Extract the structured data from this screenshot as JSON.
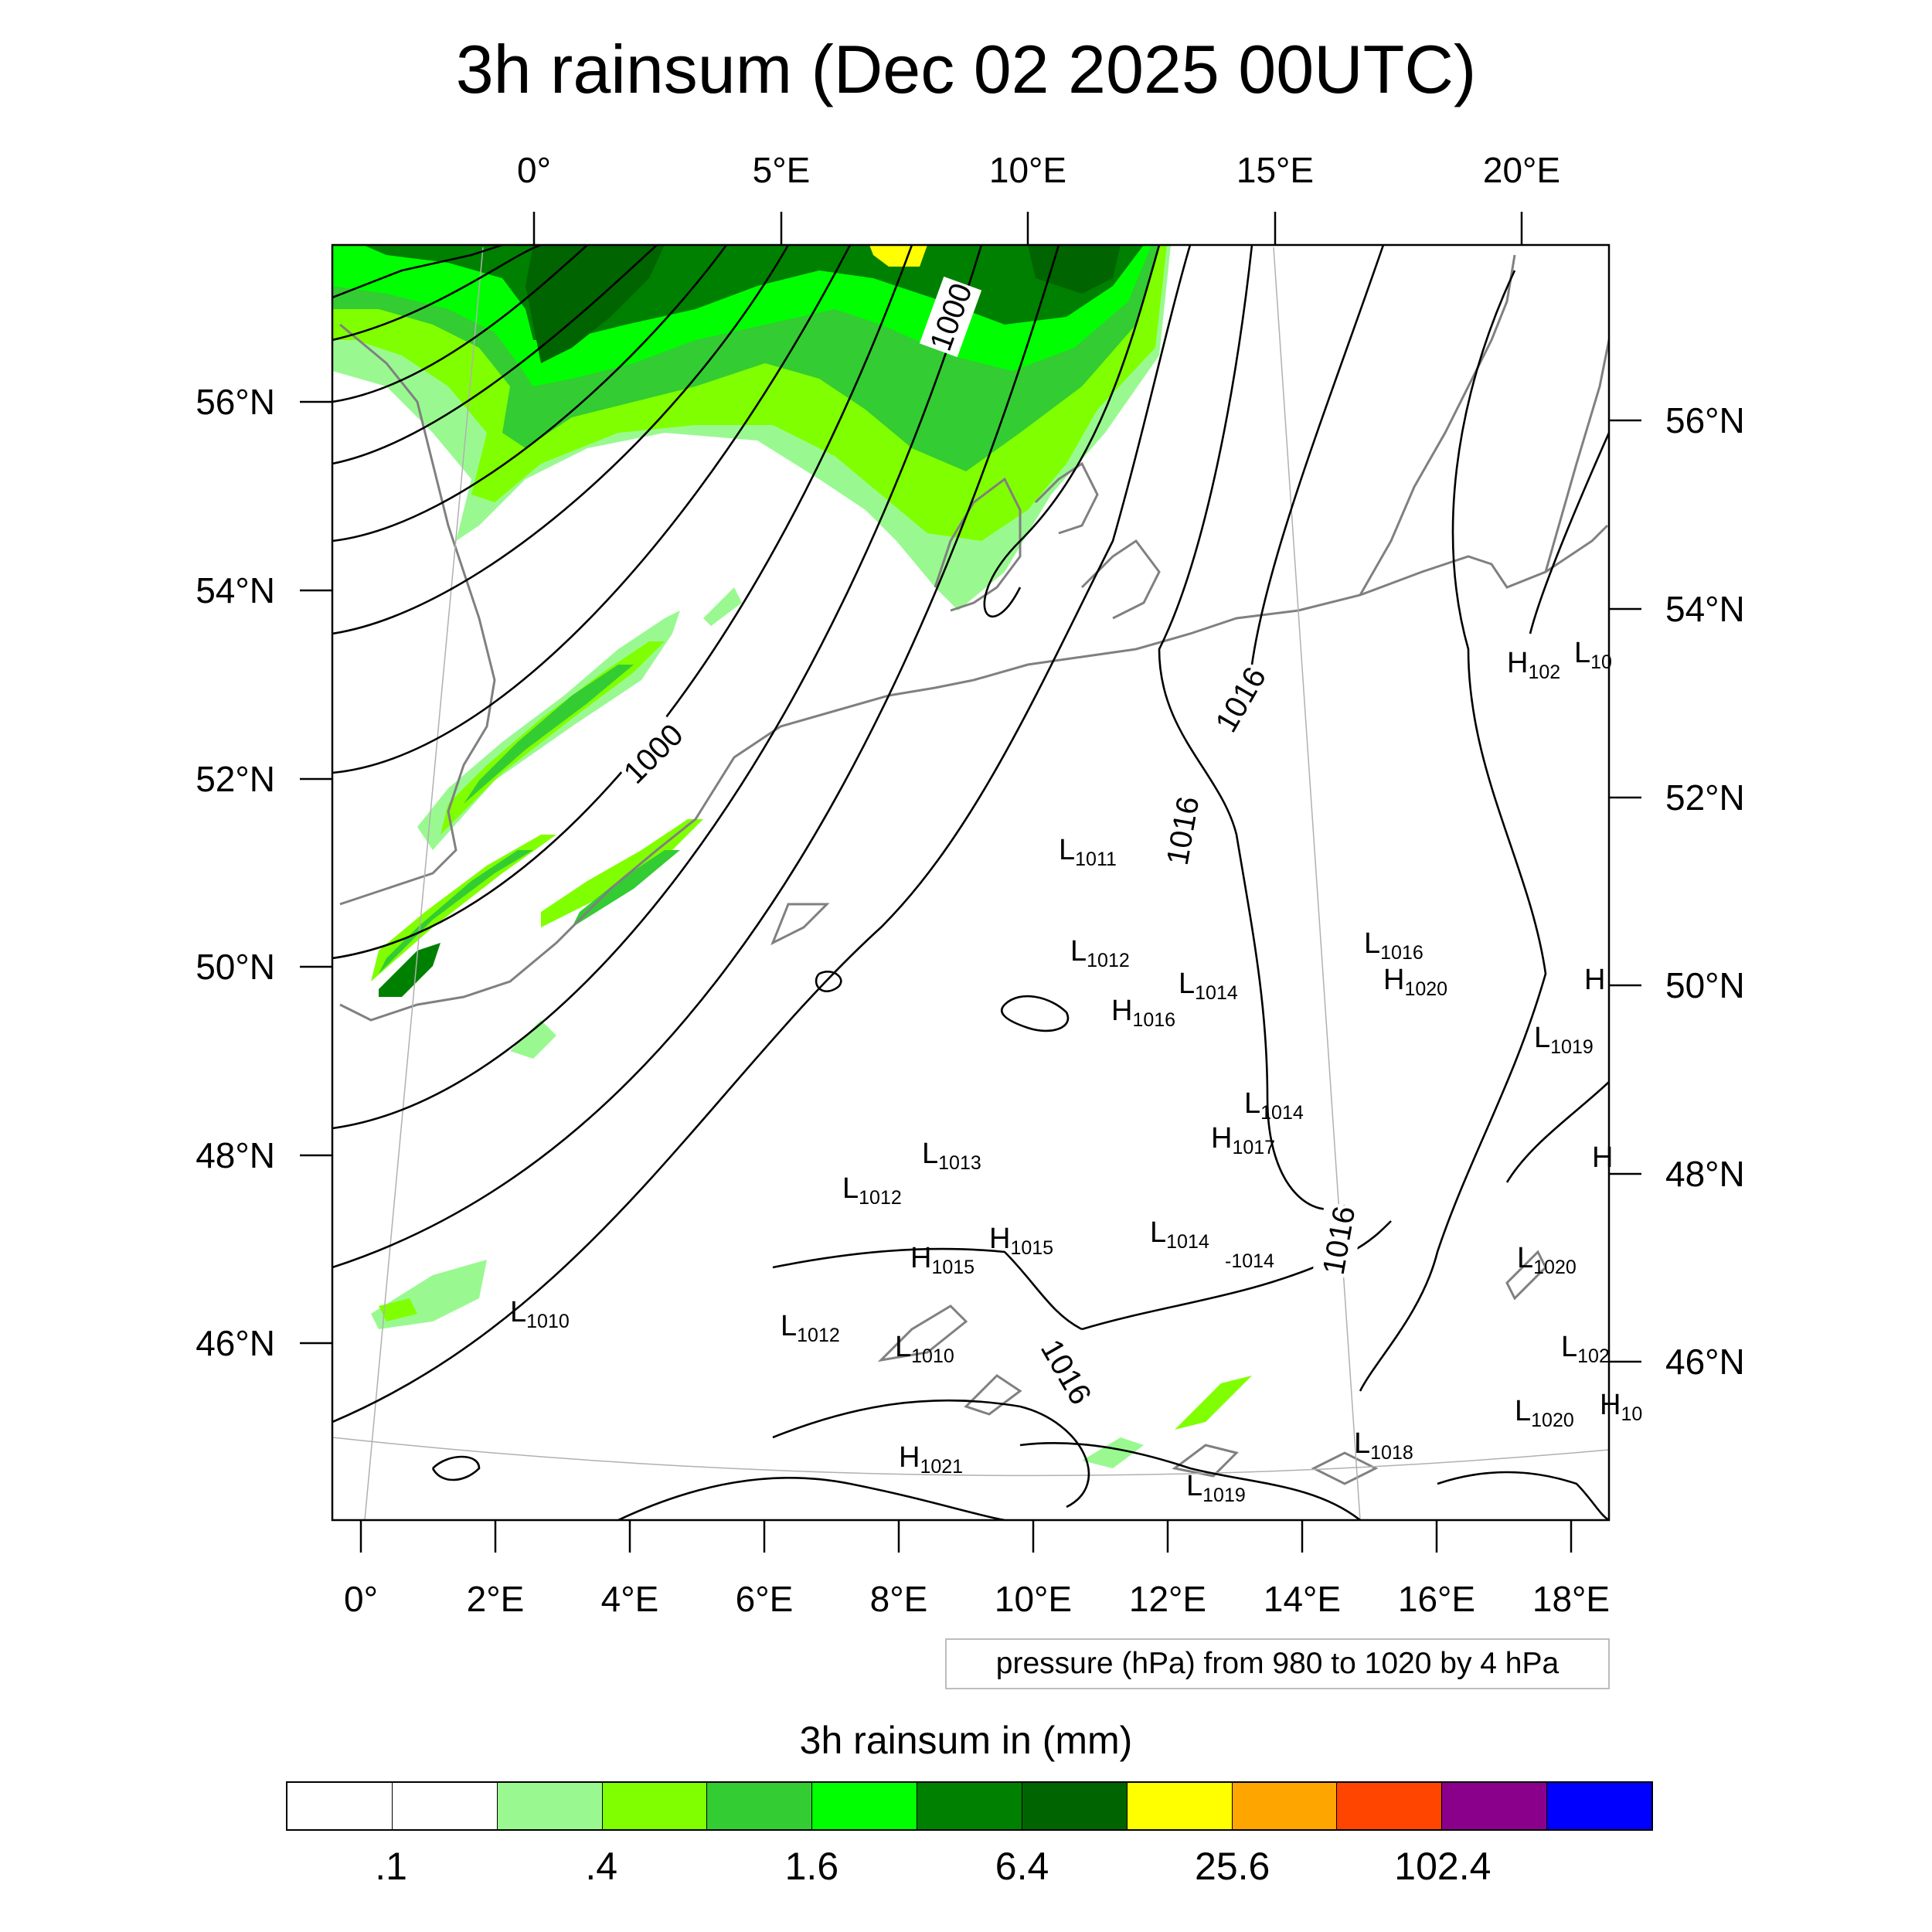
{
  "title": "3h rainsum (Dec 02 2025 00UTC)",
  "map": {
    "top_lon_labels": [
      "0°",
      "5°E",
      "10°E",
      "15°E",
      "20°E"
    ],
    "bottom_lon_labels": [
      "0°",
      "2°E",
      "4°E",
      "6°E",
      "8°E",
      "10°E",
      "12°E",
      "14°E",
      "16°E",
      "18°E"
    ],
    "left_lat_labels": [
      "56°N",
      "54°N",
      "52°N",
      "50°N",
      "48°N",
      "46°N"
    ],
    "right_lat_labels": [
      "56°N",
      "54°N",
      "52°N",
      "50°N",
      "48°N",
      "46°N"
    ],
    "contour_labels": [
      "1000",
      "1000",
      "1016",
      "1016",
      "1016",
      "1016"
    ],
    "pressure_centers": [
      {
        "type": "L",
        "value": "1011"
      },
      {
        "type": "L",
        "value": "1012"
      },
      {
        "type": "L",
        "value": "1014"
      },
      {
        "type": "H",
        "value": "1016"
      },
      {
        "type": "L",
        "value": "1016"
      },
      {
        "type": "H",
        "value": "1020"
      },
      {
        "type": "L",
        "value": "1019"
      },
      {
        "type": "L",
        "value": "1014"
      },
      {
        "type": "H",
        "value": "1017"
      },
      {
        "type": "L",
        "value": "1013"
      },
      {
        "type": "L",
        "value": "1012"
      },
      {
        "type": "H",
        "value": "1015"
      },
      {
        "type": "H",
        "value": "1015"
      },
      {
        "type": "L",
        "value": "1014"
      },
      {
        "type": "",
        "value": "-1014"
      },
      {
        "type": "L",
        "value": "1010"
      },
      {
        "type": "L",
        "value": "1012"
      },
      {
        "type": "L",
        "value": "1010"
      },
      {
        "type": "H",
        "value": "1021"
      },
      {
        "type": "L",
        "value": "1018"
      },
      {
        "type": "L",
        "value": "1019"
      },
      {
        "type": "L",
        "value": "1020"
      },
      {
        "type": "L",
        "value": "1020"
      },
      {
        "type": "L",
        "value": "102"
      },
      {
        "type": "H",
        "value": "102"
      },
      {
        "type": "L",
        "value": "10"
      },
      {
        "type": "H",
        "value": ""
      },
      {
        "type": "H",
        "value": "10"
      },
      {
        "type": "H",
        "value": ""
      }
    ],
    "rain_colors": {
      "0.4": "#99f990",
      "0.8": "#80ff00",
      "1.6": "#33cc33",
      "3.2": "#00ff00",
      "6.4": "#008000",
      "12.8": "#006400",
      "25.6": "#ffff00"
    },
    "coastline_color": "#808080",
    "isobar_color": "#000000"
  },
  "pressure_note": "pressure (hPa) from 980 to 1020 by 4 hPa",
  "colorbar": {
    "title": "3h rainsum in (mm)",
    "colors": [
      "#ffffff",
      "#ffffff",
      "#99f990",
      "#80ff00",
      "#33cc33",
      "#00ff00",
      "#008000",
      "#006400",
      "#ffff00",
      "#ffa500",
      "#ff4500",
      "#8b008b",
      "#0000ff"
    ],
    "labels": [
      ".1",
      ".4",
      "1.6",
      "6.4",
      "25.6",
      "102.4"
    ]
  }
}
